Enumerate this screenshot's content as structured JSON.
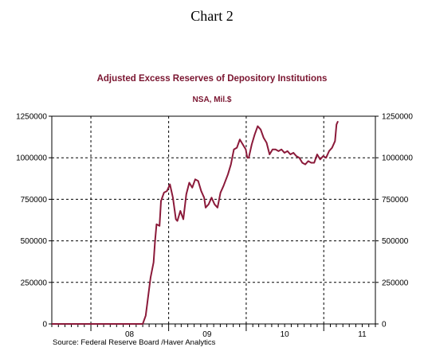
{
  "page": {
    "heading": "Chart 2",
    "source": "Source:  Federal Reserve Board /Haver Analytics"
  },
  "colors": {
    "series": "#8b1a3a",
    "title": "#7a1530",
    "axis": "#000000",
    "grid": "#000000"
  },
  "chart_data": {
    "type": "line",
    "title": "Adjusted Excess Reserves of Depository Institutions",
    "subtitle": "NSA, Mil.$",
    "xlabel": "",
    "ylabel": "",
    "x_unit": "weeks",
    "xlim": [
      "2007-07-01",
      "2011-09-01"
    ],
    "ylim": [
      0,
      1250000
    ],
    "y_ticks": [
      0,
      250000,
      500000,
      750000,
      1000000,
      1250000
    ],
    "y_tick_labels": [
      "0",
      "250000",
      "500000",
      "750000",
      "1000000",
      "1250000"
    ],
    "y_axis_sides": [
      "left",
      "right"
    ],
    "x_tick_labels": [
      {
        "label": "08",
        "at": "2008-07-01"
      },
      {
        "label": "09",
        "at": "2009-07-01"
      },
      {
        "label": "10",
        "at": "2010-07-01"
      },
      {
        "label": "11",
        "at": "2011-07-01"
      }
    ],
    "year_boundaries": [
      "2008-01-01",
      "2009-01-01",
      "2010-01-01",
      "2011-01-01"
    ],
    "grid": "dashed",
    "legend": "none",
    "series": [
      {
        "name": "",
        "points": [
          [
            "2007-07-01",
            0
          ],
          [
            "2007-10-01",
            0
          ],
          [
            "2008-01-01",
            0
          ],
          [
            "2008-04-01",
            0
          ],
          [
            "2008-07-01",
            0
          ],
          [
            "2008-09-01",
            0
          ],
          [
            "2008-09-15",
            50000
          ],
          [
            "2008-09-25",
            150000
          ],
          [
            "2008-10-08",
            280000
          ],
          [
            "2008-10-22",
            370000
          ],
          [
            "2008-10-29",
            500000
          ],
          [
            "2008-11-05",
            600000
          ],
          [
            "2008-11-19",
            590000
          ],
          [
            "2008-11-26",
            740000
          ],
          [
            "2008-12-10",
            790000
          ],
          [
            "2008-12-24",
            800000
          ],
          [
            "2009-01-07",
            840000
          ],
          [
            "2009-01-21",
            760000
          ],
          [
            "2009-02-04",
            630000
          ],
          [
            "2009-02-11",
            620000
          ],
          [
            "2009-02-25",
            680000
          ],
          [
            "2009-03-11",
            630000
          ],
          [
            "2009-03-25",
            780000
          ],
          [
            "2009-04-08",
            850000
          ],
          [
            "2009-04-22",
            820000
          ],
          [
            "2009-05-06",
            870000
          ],
          [
            "2009-05-20",
            860000
          ],
          [
            "2009-06-03",
            800000
          ],
          [
            "2009-06-17",
            760000
          ],
          [
            "2009-06-24",
            700000
          ],
          [
            "2009-07-08",
            720000
          ],
          [
            "2009-07-22",
            760000
          ],
          [
            "2009-08-05",
            720000
          ],
          [
            "2009-08-19",
            700000
          ],
          [
            "2009-09-02",
            790000
          ],
          [
            "2009-09-16",
            830000
          ],
          [
            "2009-10-07",
            900000
          ],
          [
            "2009-10-21",
            960000
          ],
          [
            "2009-11-04",
            1050000
          ],
          [
            "2009-11-18",
            1060000
          ],
          [
            "2009-12-02",
            1110000
          ],
          [
            "2009-12-16",
            1080000
          ],
          [
            "2009-12-30",
            1050000
          ],
          [
            "2010-01-06",
            1000000
          ],
          [
            "2010-01-13",
            1000000
          ],
          [
            "2010-01-27",
            1080000
          ],
          [
            "2010-02-10",
            1140000
          ],
          [
            "2010-02-24",
            1190000
          ],
          [
            "2010-03-10",
            1170000
          ],
          [
            "2010-03-24",
            1120000
          ],
          [
            "2010-04-07",
            1090000
          ],
          [
            "2010-04-21",
            1020000
          ],
          [
            "2010-05-05",
            1050000
          ],
          [
            "2010-05-19",
            1050000
          ],
          [
            "2010-06-02",
            1040000
          ],
          [
            "2010-06-16",
            1050000
          ],
          [
            "2010-06-30",
            1030000
          ],
          [
            "2010-07-14",
            1040000
          ],
          [
            "2010-07-28",
            1020000
          ],
          [
            "2010-08-11",
            1030000
          ],
          [
            "2010-08-25",
            1010000
          ],
          [
            "2010-09-08",
            1000000
          ],
          [
            "2010-09-22",
            970000
          ],
          [
            "2010-10-06",
            960000
          ],
          [
            "2010-10-20",
            980000
          ],
          [
            "2010-11-03",
            970000
          ],
          [
            "2010-11-17",
            970000
          ],
          [
            "2010-12-01",
            1020000
          ],
          [
            "2010-12-15",
            990000
          ],
          [
            "2010-12-29",
            1010000
          ],
          [
            "2011-01-12",
            1000000
          ],
          [
            "2011-01-26",
            1040000
          ],
          [
            "2011-02-09",
            1060000
          ],
          [
            "2011-02-23",
            1100000
          ],
          [
            "2011-03-02",
            1200000
          ],
          [
            "2011-03-09",
            1220000
          ]
        ]
      }
    ]
  }
}
